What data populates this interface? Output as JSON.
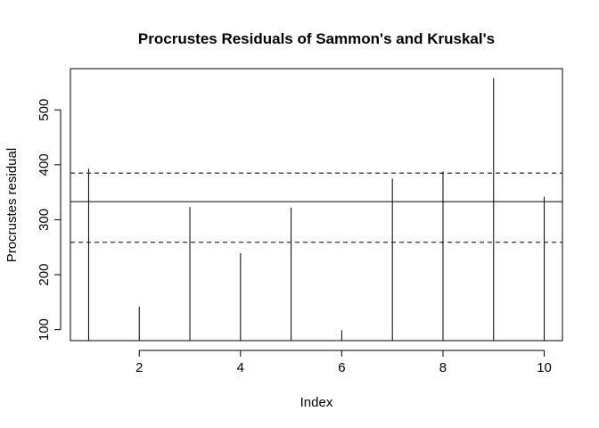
{
  "chart_data": {
    "type": "bar",
    "title": "Procrustes Residuals of Sammon's and Kruskal's",
    "xlabel": "Index",
    "ylabel": "Procrustes residual",
    "x": [
      1,
      2,
      3,
      4,
      5,
      6,
      7,
      8,
      9,
      10
    ],
    "values": [
      393,
      142,
      323,
      239,
      322,
      99,
      375,
      388,
      558,
      342
    ],
    "xlim": [
      0.64,
      10.36
    ],
    "ylim": [
      80,
      575
    ],
    "xticks": [
      2,
      4,
      6,
      8,
      10
    ],
    "yticks": [
      100,
      200,
      300,
      400,
      500
    ],
    "baseline": 80,
    "reference_lines": [
      {
        "name": "median",
        "value": 333,
        "style": "solid"
      },
      {
        "name": "upper quartile",
        "value": 385,
        "style": "dashed"
      },
      {
        "name": "lower quartile",
        "value": 259,
        "style": "dashed"
      }
    ],
    "grid": false,
    "legend": "none"
  }
}
